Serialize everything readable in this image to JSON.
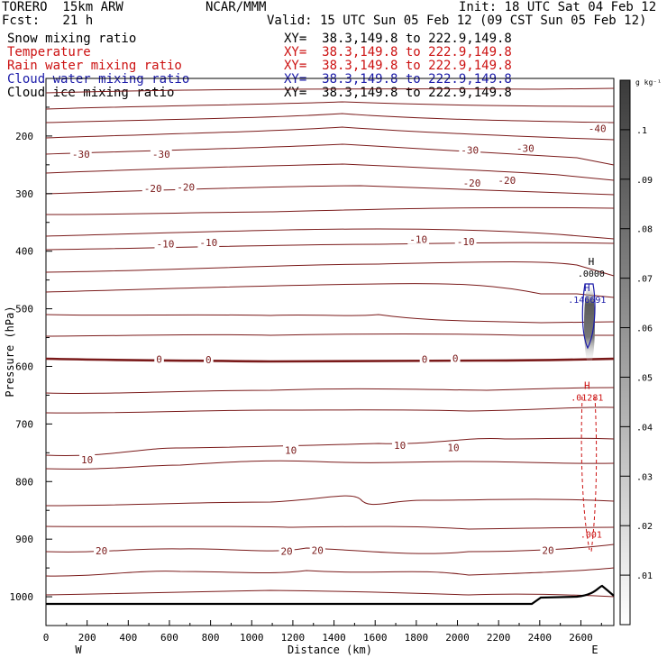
{
  "header": {
    "model": "TORERO  15km ARW",
    "center": "NCAR/MMM",
    "init": "Init: 18 UTC Sat 04 Feb 12",
    "fcst": "Fcst:   21 h",
    "valid": "Valid: 15 UTC Sun 05 Feb 12 (09 CST Sun 05 Feb 12)"
  },
  "legend": [
    {
      "label": "Snow mixing ratio",
      "xy": "XY=  38.3,149.8 to 222.9,149.8",
      "color": "#000000"
    },
    {
      "label": "Temperature",
      "xy": "XY=  38.3,149.8 to 222.9,149.8",
      "color": "#cc1111"
    },
    {
      "label": "Rain water mixing ratio",
      "xy": "XY=  38.3,149.8 to 222.9,149.8",
      "color": "#cc1111"
    },
    {
      "label": "Cloud water mixing ratio",
      "xy": "XY=  38.3,149.8 to 222.9,149.8",
      "color": "#1a1aa8"
    },
    {
      "label": "Cloud ice mixing ratio",
      "xy": "XY=  38.3,149.8 to 222.9,149.8",
      "color": "#000000"
    }
  ],
  "chart_data": {
    "type": "contour-cross-section",
    "xlabel": "Distance (km)",
    "ylabel": "Pressure (hPa)",
    "xlim": [
      0,
      2760
    ],
    "ylim": [
      1050,
      100
    ],
    "x_ticks": [
      0,
      200,
      400,
      600,
      800,
      1000,
      1200,
      1400,
      1600,
      1800,
      2000,
      2200,
      2400,
      2600
    ],
    "y_ticks": [
      200,
      300,
      400,
      500,
      600,
      700,
      800,
      900,
      1000
    ],
    "x_end_labels": {
      "left": "W",
      "right": "E"
    },
    "colorbar": {
      "unit": "g kg⁻¹",
      "ticks": [
        ".01",
        ".02",
        ".03",
        ".04",
        ".05",
        ".06",
        ".07",
        ".08",
        ".09",
        ".1"
      ],
      "values": [
        0.01,
        0.02,
        0.03,
        0.04,
        0.05,
        0.06,
        0.07,
        0.08,
        0.09,
        0.1
      ],
      "max": 0.11
    },
    "temperature_isotherm_labels": [
      {
        "label": "-40",
        "x": 2680,
        "p": 188
      },
      {
        "label": "-30",
        "x": 170,
        "p": 232
      },
      {
        "label": "-30",
        "x": 560,
        "p": 232
      },
      {
        "label": "-30",
        "x": 2060,
        "p": 225
      },
      {
        "label": "-30",
        "x": 2330,
        "p": 222
      },
      {
        "label": "-20",
        "x": 520,
        "p": 292
      },
      {
        "label": "-20",
        "x": 680,
        "p": 289
      },
      {
        "label": "-20",
        "x": 2070,
        "p": 282
      },
      {
        "label": "-20",
        "x": 2240,
        "p": 278
      },
      {
        "label": "-10",
        "x": 580,
        "p": 388
      },
      {
        "label": "-10",
        "x": 790,
        "p": 386
      },
      {
        "label": "-10",
        "x": 1810,
        "p": 380
      },
      {
        "label": "-10",
        "x": 2040,
        "p": 384
      },
      {
        "label": "0",
        "x": 550,
        "p": 588
      },
      {
        "label": "0",
        "x": 790,
        "p": 589
      },
      {
        "label": "0",
        "x": 1840,
        "p": 588
      },
      {
        "label": "0",
        "x": 1990,
        "p": 587
      },
      {
        "label": "10",
        "x": 200,
        "p": 763
      },
      {
        "label": "10",
        "x": 1190,
        "p": 746
      },
      {
        "label": "10",
        "x": 1720,
        "p": 738
      },
      {
        "label": "10",
        "x": 1980,
        "p": 742
      },
      {
        "label": "20",
        "x": 270,
        "p": 921
      },
      {
        "label": "20",
        "x": 1170,
        "p": 922
      },
      {
        "label": "20",
        "x": 1320,
        "p": 920
      },
      {
        "label": "20",
        "x": 2440,
        "p": 920
      }
    ],
    "field_extrema": [
      {
        "marker": "H",
        "value": ".0000",
        "x": 2650,
        "p": 440,
        "color": "#000000"
      },
      {
        "marker": "H",
        "value": ".146691",
        "x": 2630,
        "p": 485,
        "color": "#1a1aa8"
      },
      {
        "marker": "H",
        "value": ".01281",
        "x": 2630,
        "p": 655,
        "color": "#cc1111"
      },
      {
        "marker": "",
        "value": ".001",
        "x": 2650,
        "p": 893,
        "color": "#cc1111"
      }
    ]
  }
}
